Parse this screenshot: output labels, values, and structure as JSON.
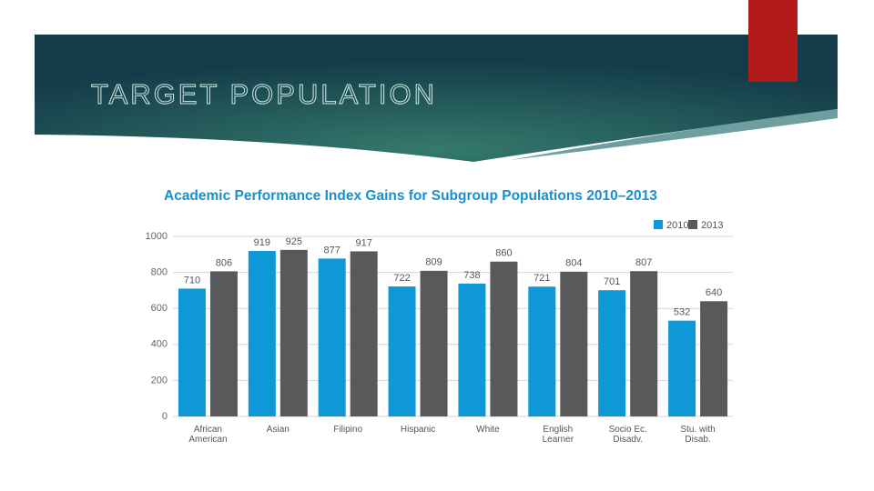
{
  "slide_title": "TARGET POPULATION",
  "chart_data": {
    "type": "bar",
    "title": "Academic Performance Index Gains for Subgroup Populations 2010–2013",
    "categories": [
      "African American",
      "Asian",
      "Filipino",
      "Hispanic",
      "White",
      "English Learner",
      "Socio Ec. Disadv.",
      "Stu. with Disab."
    ],
    "series": [
      {
        "name": "2010",
        "color": "#0e98d8",
        "values": [
          710,
          919,
          877,
          722,
          738,
          721,
          701,
          532
        ]
      },
      {
        "name": "2013",
        "color": "#58595b",
        "values": [
          806,
          925,
          917,
          809,
          860,
          804,
          807,
          640
        ]
      }
    ],
    "ylim": [
      0,
      1000
    ],
    "yticks": [
      0,
      200,
      400,
      600,
      800,
      1000
    ],
    "grid": true,
    "legend": "top-right"
  }
}
